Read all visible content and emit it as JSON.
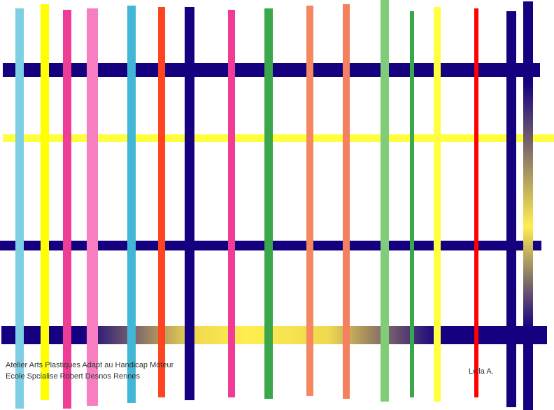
{
  "credits": {
    "line1": "Atelier Arts Plastiques Adapt au Handicap Moteur",
    "line2": "Ecole Spcialise Robert Desnos Rennes",
    "author": "Le'la A."
  }
}
